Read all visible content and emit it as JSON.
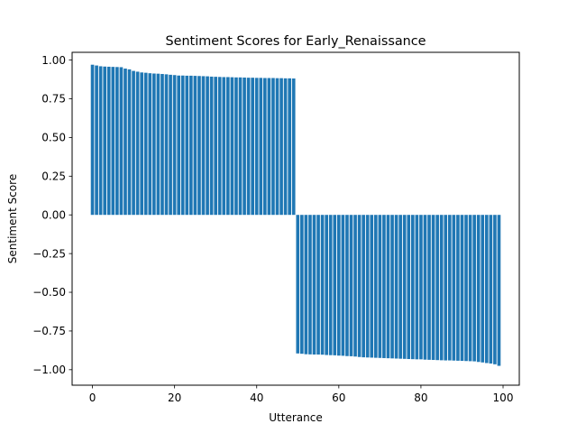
{
  "chart_data": {
    "type": "bar",
    "title": "Sentiment Scores for Early_Renaissance",
    "xlabel": "Utterance",
    "ylabel": "Sentiment Score",
    "xlim": [
      -4.95,
      103.95
    ],
    "ylim": [
      -1.1,
      1.05
    ],
    "xticks": [
      0,
      20,
      40,
      60,
      80,
      100
    ],
    "xtick_labels": [
      "0",
      "20",
      "40",
      "60",
      "80",
      "100"
    ],
    "yticks": [
      1.0,
      0.75,
      0.5,
      0.25,
      0.0,
      -0.25,
      -0.5,
      -0.75,
      -1.0
    ],
    "ytick_labels": [
      "1.00",
      "0.75",
      "0.50",
      "0.25",
      "0.00",
      "−0.25",
      "−0.50",
      "−0.75",
      "−1.00"
    ],
    "grid": false,
    "bar_color": "#1f77b4",
    "x": [
      0,
      1,
      2,
      3,
      4,
      5,
      6,
      7,
      8,
      9,
      10,
      11,
      12,
      13,
      14,
      15,
      16,
      17,
      18,
      19,
      20,
      21,
      22,
      23,
      24,
      25,
      26,
      27,
      28,
      29,
      30,
      31,
      32,
      33,
      34,
      35,
      36,
      37,
      38,
      39,
      40,
      41,
      42,
      43,
      44,
      45,
      46,
      47,
      48,
      49,
      50,
      51,
      52,
      53,
      54,
      55,
      56,
      57,
      58,
      59,
      60,
      61,
      62,
      63,
      64,
      65,
      66,
      67,
      68,
      69,
      70,
      71,
      72,
      73,
      74,
      75,
      76,
      77,
      78,
      79,
      80,
      81,
      82,
      83,
      84,
      85,
      86,
      87,
      88,
      89,
      90,
      91,
      92,
      93,
      94,
      95,
      96,
      97,
      98,
      99
    ],
    "values": [
      0.97,
      0.965,
      0.96,
      0.958,
      0.957,
      0.956,
      0.955,
      0.954,
      0.945,
      0.94,
      0.93,
      0.925,
      0.92,
      0.918,
      0.915,
      0.913,
      0.912,
      0.91,
      0.908,
      0.905,
      0.903,
      0.9,
      0.9,
      0.899,
      0.899,
      0.898,
      0.897,
      0.896,
      0.895,
      0.893,
      0.892,
      0.891,
      0.89,
      0.89,
      0.889,
      0.888,
      0.888,
      0.887,
      0.886,
      0.886,
      0.885,
      0.885,
      0.884,
      0.884,
      0.884,
      0.883,
      0.883,
      0.882,
      0.882,
      0.881,
      -0.895,
      -0.897,
      -0.9,
      -0.901,
      -0.902,
      -0.902,
      -0.903,
      -0.905,
      -0.906,
      -0.907,
      -0.909,
      -0.91,
      -0.912,
      -0.913,
      -0.915,
      -0.918,
      -0.92,
      -0.921,
      -0.922,
      -0.923,
      -0.924,
      -0.925,
      -0.926,
      -0.927,
      -0.928,
      -0.929,
      -0.93,
      -0.931,
      -0.932,
      -0.933,
      -0.933,
      -0.935,
      -0.936,
      -0.937,
      -0.938,
      -0.939,
      -0.94,
      -0.94,
      -0.941,
      -0.942,
      -0.943,
      -0.944,
      -0.945,
      -0.946,
      -0.95,
      -0.953,
      -0.957,
      -0.96,
      -0.965,
      -0.975
    ]
  }
}
